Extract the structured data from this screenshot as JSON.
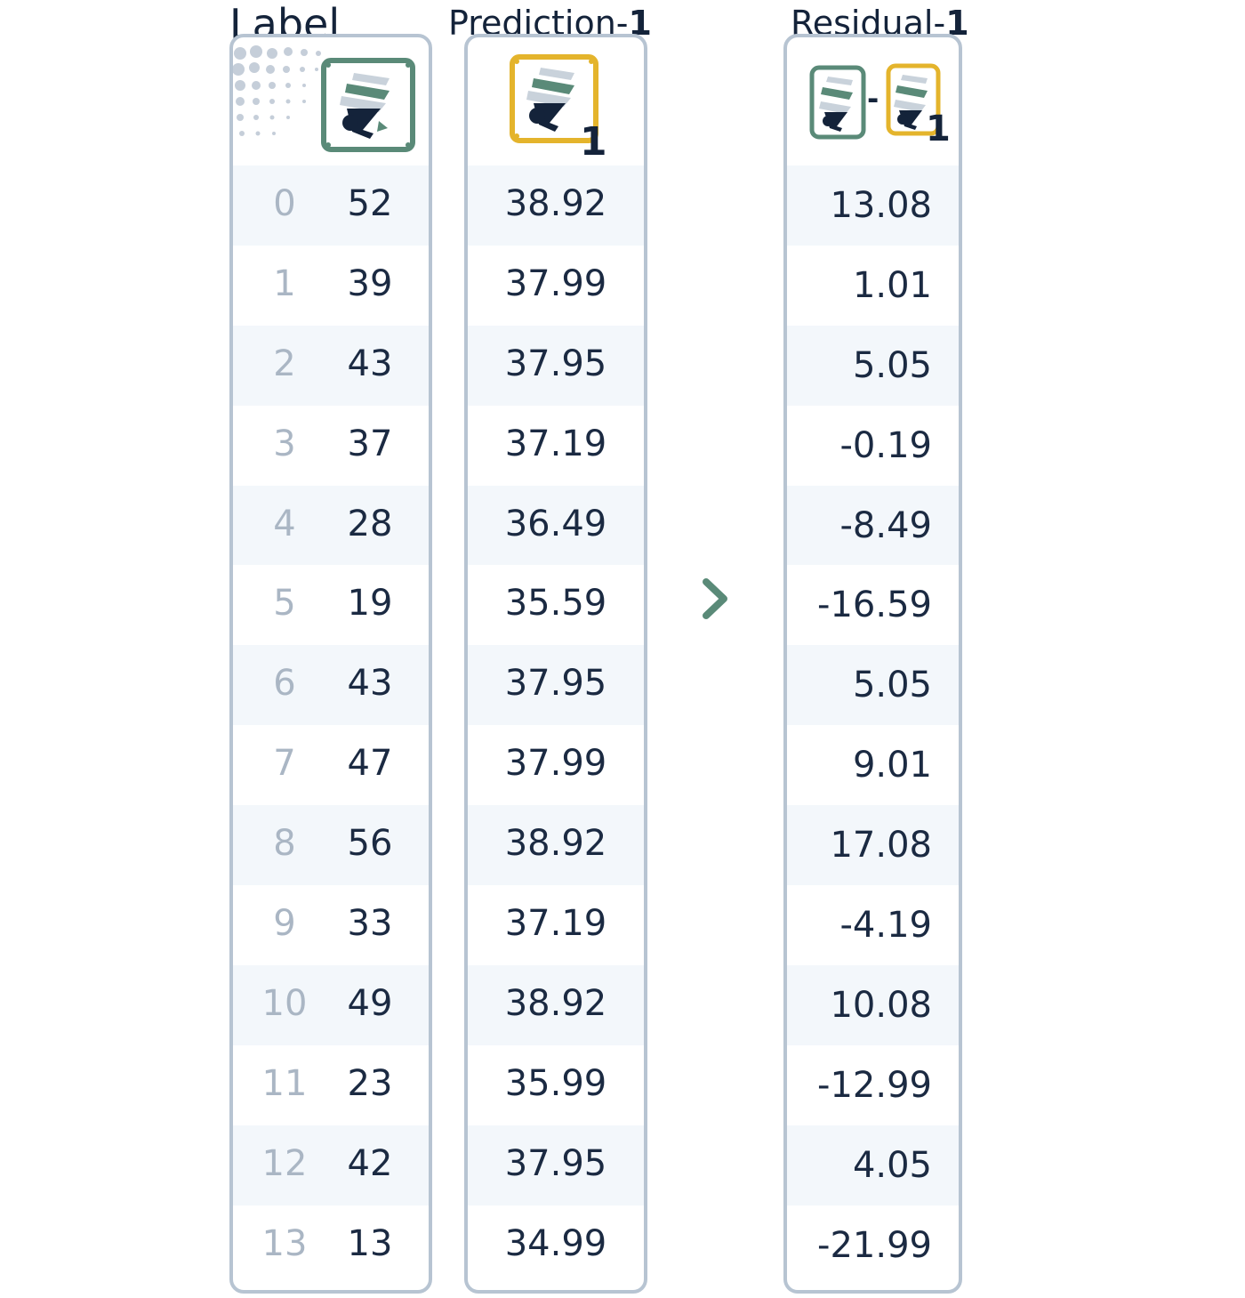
{
  "columns": {
    "label": {
      "title": "Label"
    },
    "prediction": {
      "title_prefix": "Prediction-",
      "title_num": "1",
      "icon_subscript": "1"
    },
    "residual": {
      "title_prefix": "Residual-",
      "title_num": "1",
      "icon_minus": "-",
      "icon_subscript": "1"
    }
  },
  "rows": [
    {
      "index": "0",
      "label": "52",
      "prediction": "38.92",
      "residual": "13.08"
    },
    {
      "index": "1",
      "label": "39",
      "prediction": "37.99",
      "residual": "1.01"
    },
    {
      "index": "2",
      "label": "43",
      "prediction": "37.95",
      "residual": "5.05"
    },
    {
      "index": "3",
      "label": "37",
      "prediction": "37.19",
      "residual": "-0.19"
    },
    {
      "index": "4",
      "label": "28",
      "prediction": "36.49",
      "residual": "-8.49"
    },
    {
      "index": "5",
      "label": "19",
      "prediction": "35.59",
      "residual": "-16.59"
    },
    {
      "index": "6",
      "label": "43",
      "prediction": "37.95",
      "residual": "5.05"
    },
    {
      "index": "7",
      "label": "47",
      "prediction": "37.99",
      "residual": "9.01"
    },
    {
      "index": "8",
      "label": "56",
      "prediction": "38.92",
      "residual": "17.08"
    },
    {
      "index": "9",
      "label": "33",
      "prediction": "37.19",
      "residual": "-4.19"
    },
    {
      "index": "10",
      "label": "49",
      "prediction": "38.92",
      "residual": "10.08"
    },
    {
      "index": "11",
      "label": "23",
      "prediction": "35.99",
      "residual": "-12.99"
    },
    {
      "index": "12",
      "label": "42",
      "prediction": "37.95",
      "residual": "4.05"
    },
    {
      "index": "13",
      "label": "13",
      "prediction": "34.99",
      "residual": "-21.99"
    }
  ],
  "icons": {
    "label_icon": "tree-model-icon",
    "prediction_icon": "tree-model-icon",
    "arrow": "chevron-right-icon"
  },
  "colors": {
    "label_frame": "#5a8a78",
    "prediction_frame": "#e4b42c",
    "panel_border": "#b7c4d2",
    "row_alt": "#f3f7fb",
    "arrow": "#5a8a78",
    "text": "#1b2a42",
    "index_text": "#aab6c4"
  }
}
